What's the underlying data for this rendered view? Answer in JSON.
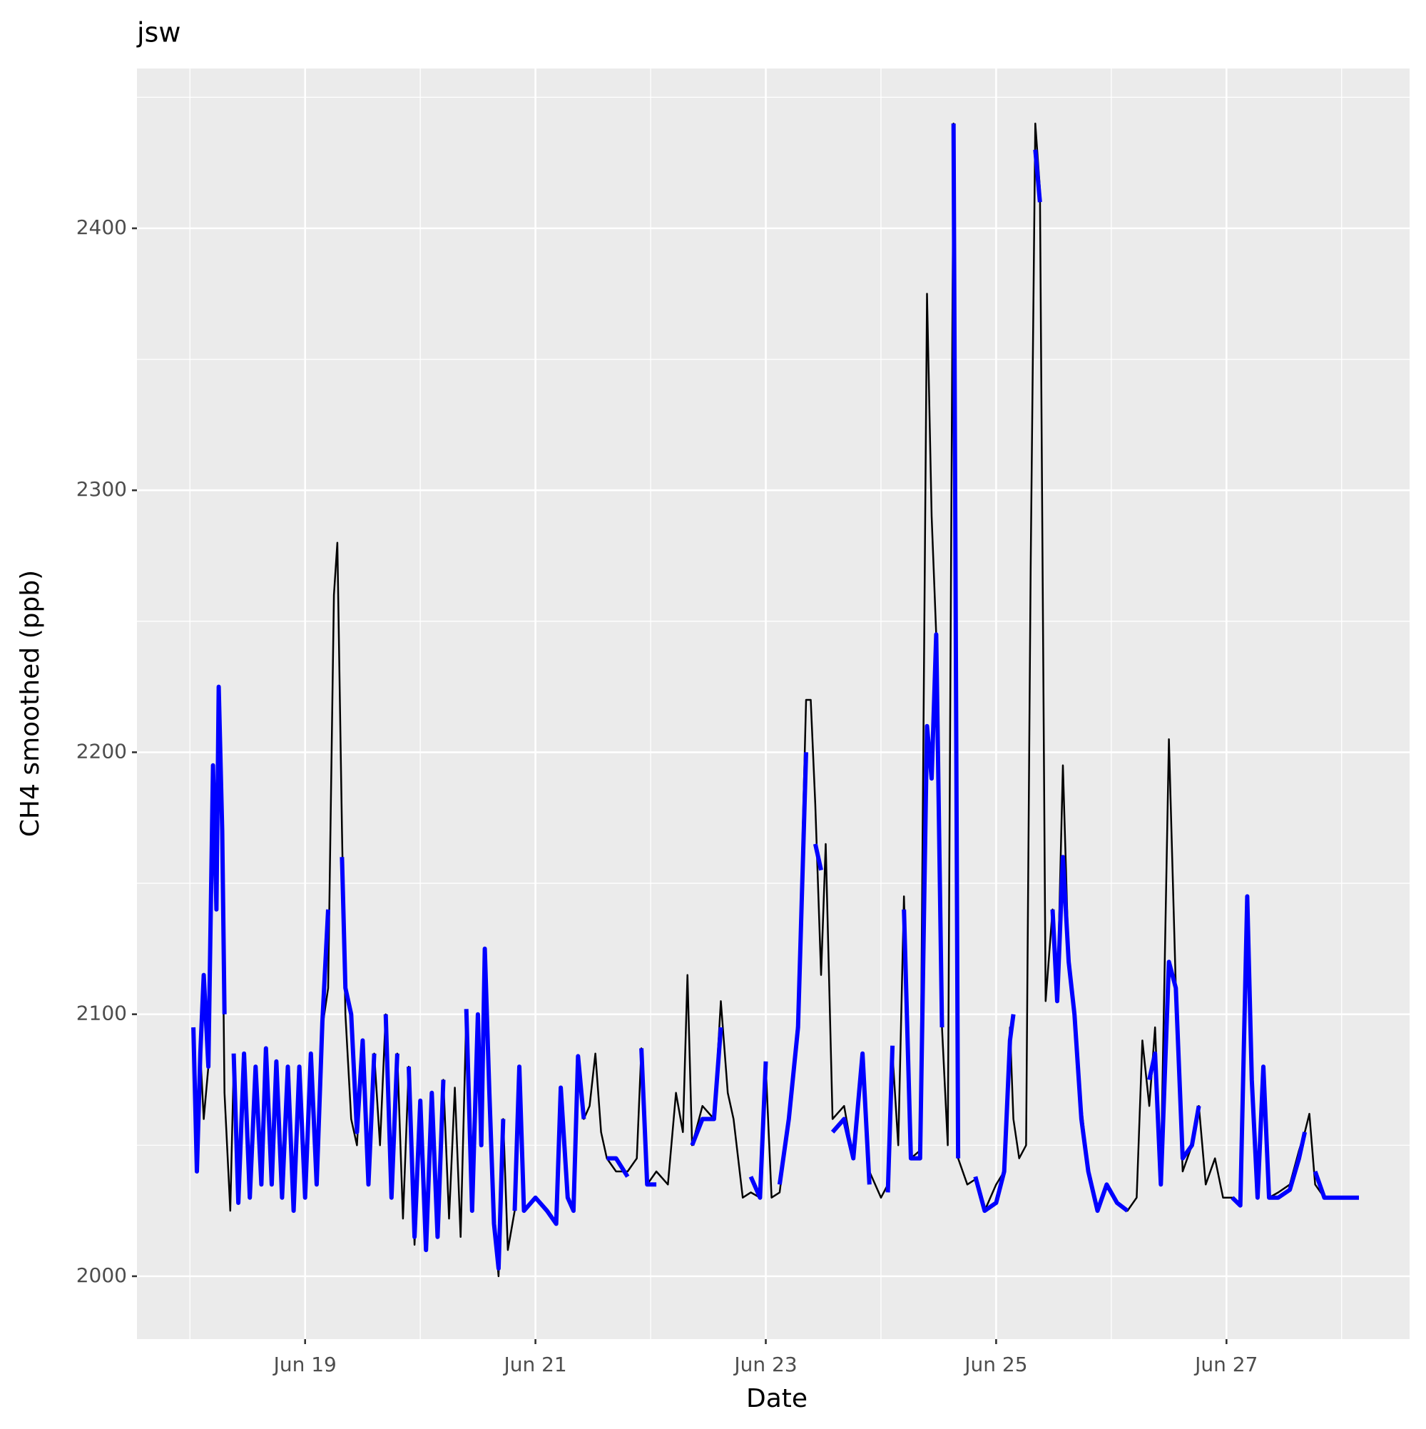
{
  "chart_data": {
    "type": "line",
    "title": "jsw",
    "xlabel": "Date",
    "ylabel": "CH4 smoothed (ppb)",
    "xlim": [
      17.54,
      28.59
    ],
    "ylim": [
      1976,
      2461
    ],
    "xticks": [
      {
        "value": 19,
        "label": "Jun 19"
      },
      {
        "value": 21,
        "label": "Jun 21"
      },
      {
        "value": 23,
        "label": "Jun 23"
      },
      {
        "value": 25,
        "label": "Jun 25"
      },
      {
        "value": 27,
        "label": "Jun 27"
      }
    ],
    "xminor": [
      18,
      20,
      22,
      24,
      26,
      28
    ],
    "yticks": [
      2000,
      2100,
      2200,
      2300,
      2400
    ],
    "yminor": [
      2050,
      2150,
      2250,
      2350,
      2450
    ],
    "grid": true,
    "x": [
      18.03,
      18.06,
      18.09,
      18.12,
      18.16,
      18.2,
      18.23,
      18.25,
      18.28,
      18.3,
      18.35,
      18.38,
      18.42,
      18.47,
      18.52,
      18.57,
      18.62,
      18.66,
      18.71,
      18.75,
      18.8,
      18.85,
      18.9,
      18.95,
      19.0,
      19.05,
      19.1,
      19.15,
      19.2,
      19.25,
      19.28,
      19.32,
      19.35,
      19.4,
      19.45,
      19.5,
      19.55,
      19.6,
      19.65,
      19.7,
      19.75,
      19.8,
      19.85,
      19.9,
      19.95,
      20.0,
      20.05,
      20.1,
      20.15,
      20.2,
      20.25,
      20.3,
      20.35,
      20.4,
      20.45,
      20.5,
      20.53,
      20.56,
      20.6,
      20.64,
      20.68,
      20.72,
      20.76,
      20.82,
      20.86,
      20.9,
      21.0,
      21.1,
      21.18,
      21.22,
      21.28,
      21.33,
      21.37,
      21.42,
      21.47,
      21.52,
      21.57,
      21.62,
      21.7,
      21.8,
      21.88,
      21.92,
      21.97,
      22.05,
      22.15,
      22.22,
      22.28,
      22.32,
      22.36,
      22.45,
      22.55,
      22.61,
      22.67,
      22.72,
      22.8,
      22.87,
      22.95,
      23.0,
      23.05,
      23.12,
      23.2,
      23.28,
      23.35,
      23.39,
      23.43,
      23.48,
      23.52,
      23.58,
      23.68,
      23.76,
      23.84,
      23.9,
      24.0,
      24.06,
      24.1,
      24.15,
      24.2,
      24.26,
      24.34,
      24.4,
      24.44,
      24.48,
      24.53,
      24.58,
      24.63,
      24.67,
      24.75,
      24.82,
      24.9,
      25.0,
      25.07,
      25.12,
      25.15,
      25.2,
      25.26,
      25.3,
      25.34,
      25.38,
      25.43,
      25.49,
      25.53,
      25.58,
      25.63,
      25.68,
      25.74,
      25.8,
      25.88,
      25.96,
      26.05,
      26.14,
      26.22,
      26.27,
      26.33,
      26.38,
      26.43,
      26.5,
      26.56,
      26.62,
      26.7,
      26.76,
      26.82,
      26.9,
      26.97,
      27.05,
      27.12,
      27.18,
      27.22,
      27.27,
      27.32,
      27.37,
      27.45,
      27.55,
      27.63,
      27.68,
      27.72,
      27.77,
      27.85,
      27.95,
      28.05,
      28.15
    ],
    "series": [
      {
        "color": "#000000",
        "width": 2.5,
        "values": [
          2095,
          2040,
          2085,
          2060,
          2080,
          2190,
          2140,
          2225,
          2150,
          2070,
          2025,
          2080,
          2028,
          2080,
          2030,
          2080,
          2035,
          2085,
          2035,
          2080,
          2030,
          2078,
          2025,
          2080,
          2030,
          2080,
          2035,
          2095,
          2110,
          2260,
          2280,
          2170,
          2100,
          2060,
          2050,
          2090,
          2035,
          2085,
          2050,
          2100,
          2030,
          2085,
          2022,
          2080,
          2012,
          2065,
          2010,
          2070,
          2015,
          2075,
          2022,
          2072,
          2015,
          2100,
          2025,
          2100,
          2050,
          2125,
          2070,
          2020,
          2000,
          2060,
          2010,
          2025,
          2078,
          2025,
          2030,
          2025,
          2020,
          2070,
          2030,
          2025,
          2080,
          2060,
          2065,
          2085,
          2055,
          2045,
          2040,
          2040,
          2045,
          2087,
          2035,
          2040,
          2035,
          2070,
          2055,
          2115,
          2050,
          2065,
          2060,
          2105,
          2070,
          2060,
          2030,
          2032,
          2030,
          2080,
          2030,
          2032,
          2060,
          2100,
          2220,
          2220,
          2180,
          2115,
          2165,
          2060,
          2065,
          2045,
          2080,
          2040,
          2030,
          2035,
          2085,
          2050,
          2145,
          2045,
          2048,
          2375,
          2290,
          2245,
          2095,
          2050,
          2440,
          2045,
          2035,
          2037,
          2025,
          2035,
          2040,
          2095,
          2060,
          2045,
          2050,
          2270,
          2440,
          2415,
          2105,
          2140,
          2105,
          2195,
          2120,
          2100,
          2065,
          2040,
          2025,
          2035,
          2028,
          2025,
          2030,
          2090,
          2065,
          2095,
          2040,
          2205,
          2110,
          2040,
          2050,
          2065,
          2035,
          2045,
          2030,
          2030,
          2028,
          2145,
          2080,
          2030,
          2078,
          2030,
          2032,
          2035,
          2048,
          2055,
          2062,
          2035,
          2030,
          2030,
          2030,
          2030
        ]
      },
      {
        "color": "#0000ff",
        "width": 6,
        "values": [
          2095,
          2040,
          2085,
          2115,
          2080,
          2195,
          2140,
          2225,
          2170,
          2100,
          null,
          2085,
          2028,
          2085,
          2030,
          2080,
          2035,
          2087,
          2035,
          2082,
          2030,
          2080,
          2025,
          2080,
          2030,
          2085,
          2035,
          2097,
          2140,
          null,
          null,
          2160,
          2110,
          2100,
          2055,
          2090,
          2035,
          2085,
          null,
          2100,
          2030,
          2085,
          null,
          2080,
          2015,
          2067,
          2010,
          2070,
          2015,
          2075,
          null,
          2072,
          null,
          2102,
          2025,
          2100,
          2050,
          2125,
          2070,
          2020,
          2003,
          2060,
          null,
          2025,
          2080,
          2025,
          2030,
          2025,
          2020,
          2072,
          2030,
          2025,
          2084,
          2060,
          null,
          2085,
          null,
          2045,
          2045,
          2038,
          null,
          2087,
          2035,
          2035,
          null,
          null,
          2058,
          null,
          2050,
          2060,
          2060,
          2095,
          null,
          null,
          null,
          2038,
          2030,
          2082,
          null,
          2035,
          2060,
          2095,
          2200,
          null,
          2165,
          2155,
          null,
          2055,
          2060,
          2045,
          2085,
          2035,
          null,
          2032,
          2088,
          null,
          2140,
          2045,
          2045,
          2210,
          2190,
          2245,
          2095,
          null,
          2440,
          2045,
          null,
          2038,
          2025,
          2028,
          2040,
          2090,
          2100,
          null,
          2048,
          null,
          2430,
          2410,
          null,
          2140,
          2105,
          2160,
          2120,
          2100,
          2060,
          2040,
          2025,
          2035,
          2028,
          2025,
          null,
          null,
          2075,
          2085,
          2035,
          2120,
          2110,
          2045,
          2050,
          2065,
          null,
          2040,
          null,
          2030,
          2027,
          2145,
          2075,
          2030,
          2080,
          2030,
          2030,
          2033,
          2045,
          2055,
          null,
          2040,
          2030,
          2030,
          2030,
          2030
        ]
      }
    ]
  }
}
